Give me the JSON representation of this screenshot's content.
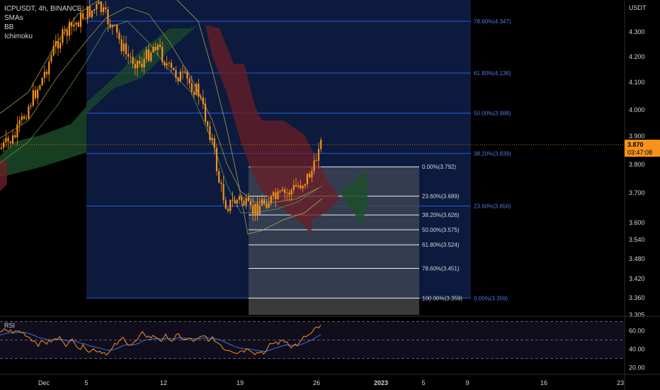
{
  "symbol": "ICPUSDT, 4h, BINANCE",
  "indicators": [
    "SMAs",
    "BB",
    "Ichimoku"
  ],
  "rsi_label": "RSI",
  "axis_label": "USDT",
  "current_price": "3.870",
  "countdown": "03:47:08",
  "colors": {
    "background": "#000000",
    "candle": "#f7931a",
    "fib_big_zone": "#0c1a3d",
    "fib_big_line": "#2a5bd7",
    "fib_small_zone": "#3c4454",
    "fib_small_line": "#ffffff",
    "cloud_red": "#6b1d26",
    "cloud_green": "#1e4d2b",
    "rsi_line": "#f7931a",
    "rsi_ma": "#3f6fe0",
    "price_tag": "#f7931a"
  },
  "chart_data": {
    "type": "candlestick",
    "ylim": [
      3.305,
      4.44
    ],
    "y_ticks": [
      "4.300",
      "4.200",
      "4.100",
      "4.000",
      "3.900",
      "3.800",
      "3.700",
      "3.600",
      "3.540",
      "3.480",
      "3.420",
      "3.360",
      "3.305"
    ],
    "x_ticks": [
      "Dec",
      "5",
      "12",
      "19",
      "26",
      "2023",
      "5",
      "9",
      "16",
      "23"
    ],
    "last_price": 3.87,
    "fib_large": [
      {
        "label": "78.60%(4.347)",
        "value": 4.347
      },
      {
        "label": "61.80%(4.136)",
        "value": 4.136
      },
      {
        "label": "50.00%(3.988)",
        "value": 3.988
      },
      {
        "label": "38.20%(3.839)",
        "value": 3.839
      },
      {
        "label": "23.60%(3.656)",
        "value": 3.656
      },
      {
        "label": "0.00%(3.359)",
        "value": 3.359
      }
    ],
    "fib_small": [
      {
        "label": "0.00%(3.792)",
        "value": 3.792
      },
      {
        "label": "23.60%(3.689)",
        "value": 3.689
      },
      {
        "label": "38.20%(3.626)",
        "value": 3.626
      },
      {
        "label": "50.00%(3.575)",
        "value": 3.575
      },
      {
        "label": "61.80%(3.524)",
        "value": 3.524
      },
      {
        "label": "78.60%(3.451)",
        "value": 3.451
      },
      {
        "label": "100.00%(3.359)",
        "value": 3.359
      }
    ],
    "rsi": {
      "ylim": [
        15,
        75
      ],
      "y_ticks": [
        "60.00",
        "40.00",
        "20.00"
      ],
      "upper": 70,
      "middle": 50,
      "lower": 30
    }
  }
}
